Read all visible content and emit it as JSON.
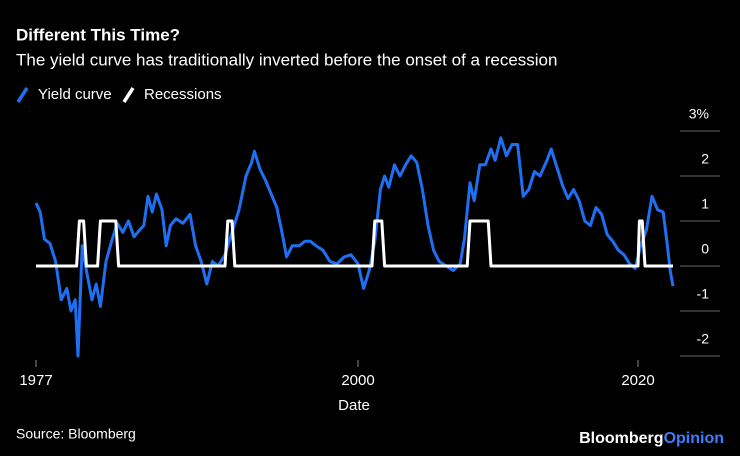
{
  "chart_data": {
    "type": "line",
    "title": "Different This Time?",
    "subtitle": "The yield curve has traditionally inverted before the onset of a recession",
    "xlabel": "Date",
    "source": "Source: Bloomberg",
    "brand": {
      "name": "Bloomberg",
      "suffix": "Opinion"
    },
    "xlim": [
      1977,
      2022.5
    ],
    "xticks": [
      1977,
      2000,
      2020
    ],
    "ylim": [
      -2,
      3
    ],
    "yticks": [
      -2,
      -1,
      0,
      1,
      2,
      {
        "value": 3,
        "label": "3%"
      }
    ],
    "grid": true,
    "legend": "top-left",
    "series": [
      {
        "name": "Yield curve",
        "color": "#1f6ff2",
        "x": [
          1977.0,
          1977.3,
          1977.6,
          1978.0,
          1978.4,
          1978.8,
          1979.2,
          1979.5,
          1979.8,
          1980.0,
          1980.3,
          1980.6,
          1981.0,
          1981.3,
          1981.6,
          1982.0,
          1982.4,
          1982.8,
          1983.2,
          1983.6,
          1984.0,
          1984.4,
          1984.7,
          1985.0,
          1985.3,
          1985.6,
          1986.0,
          1986.3,
          1986.6,
          1987.0,
          1987.5,
          1988.0,
          1988.4,
          1988.8,
          1989.2,
          1989.6,
          1990.0,
          1990.5,
          1991.0,
          1991.5,
          1992.0,
          1992.4,
          1992.6,
          1993.0,
          1993.4,
          1993.8,
          1994.2,
          1994.6,
          1994.9,
          1995.3,
          1995.8,
          1996.2,
          1996.6,
          1997.0,
          1997.5,
          1998.0,
          1998.5,
          1999.0,
          1999.5,
          2000.0,
          2000.4,
          2000.8,
          2001.2,
          2001.6,
          2001.9,
          2002.2,
          2002.6,
          2003.0,
          2003.4,
          2003.8,
          2004.2,
          2004.6,
          2005.0,
          2005.4,
          2005.8,
          2006.3,
          2006.8,
          2007.3,
          2007.6,
          2008.0,
          2008.3,
          2008.7,
          2009.1,
          2009.5,
          2009.8,
          2010.2,
          2010.6,
          2011.0,
          2011.4,
          2011.8,
          2012.2,
          2012.6,
          2013.0,
          2013.5,
          2013.8,
          2014.2,
          2014.6,
          2015.0,
          2015.4,
          2015.8,
          2016.2,
          2016.6,
          2017.0,
          2017.4,
          2017.8,
          2018.2,
          2018.6,
          2019.0,
          2019.4,
          2019.8,
          2020.2,
          2020.6,
          2021.0,
          2021.4,
          2021.8,
          2022.1,
          2022.3,
          2022.5
        ],
        "values": [
          1.4,
          1.2,
          0.6,
          0.5,
          0.1,
          -0.75,
          -0.5,
          -1.0,
          -0.75,
          -2.0,
          0.45,
          -0.1,
          -0.75,
          -0.4,
          -0.9,
          0.1,
          0.55,
          0.95,
          0.75,
          1.0,
          0.65,
          0.8,
          0.9,
          1.55,
          1.2,
          1.6,
          1.25,
          0.45,
          0.9,
          1.05,
          0.95,
          1.15,
          0.45,
          0.1,
          -0.4,
          0.1,
          0.0,
          0.25,
          0.75,
          1.25,
          2.0,
          2.3,
          2.55,
          2.15,
          1.9,
          1.6,
          1.3,
          0.7,
          0.2,
          0.45,
          0.45,
          0.55,
          0.55,
          0.45,
          0.35,
          0.1,
          0.05,
          0.2,
          0.25,
          0.05,
          -0.5,
          -0.1,
          0.55,
          1.7,
          2.0,
          1.75,
          2.25,
          2.0,
          2.25,
          2.45,
          2.3,
          1.7,
          0.9,
          0.35,
          0.1,
          0.0,
          -0.1,
          0.05,
          0.6,
          1.85,
          1.45,
          2.25,
          2.25,
          2.6,
          2.35,
          2.85,
          2.45,
          2.7,
          2.7,
          1.55,
          1.7,
          2.1,
          2.0,
          2.35,
          2.6,
          2.2,
          1.8,
          1.5,
          1.7,
          1.45,
          1.0,
          0.9,
          1.3,
          1.15,
          0.7,
          0.55,
          0.35,
          0.25,
          0.05,
          -0.05,
          0.45,
          0.8,
          1.55,
          1.25,
          1.2,
          0.45,
          -0.1,
          -0.45
        ]
      },
      {
        "name": "Recessions",
        "color": "#ffffff",
        "x": [
          1977,
          1979.9,
          1980.1,
          1980.4,
          1980.6,
          1981.4,
          1981.6,
          1982.7,
          1982.9,
          1990.5,
          1990.7,
          1991.0,
          1991.2,
          2001.0,
          2001.2,
          2001.7,
          2001.9,
          2007.8,
          2008.0,
          2009.3,
          2009.5,
          2020.0,
          2020.1,
          2020.3,
          2020.5,
          2022.5
        ],
        "values": [
          0,
          0,
          1,
          1,
          0,
          0,
          1,
          1,
          0,
          0,
          1,
          1,
          0,
          0,
          1,
          1,
          0,
          0,
          1,
          1,
          0,
          0,
          1,
          1,
          0,
          0
        ]
      }
    ]
  }
}
